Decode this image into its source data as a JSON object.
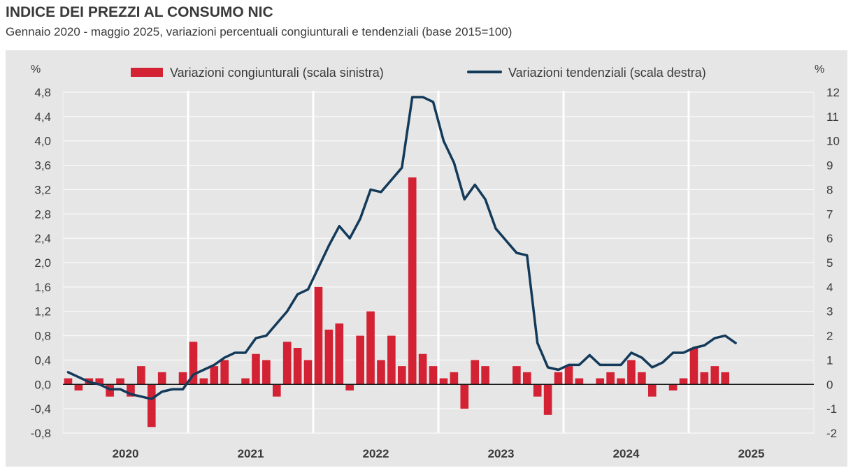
{
  "title": "INDICE DEI PREZZI AL CONSUMO NIC",
  "subtitle": "Gennaio 2020 - maggio 2025, variazioni percentuali congiunturali e tendenziali (base 2015=100)",
  "colors": {
    "bar": "#d42235",
    "line": "#143a5a",
    "plot_bg": "#e6e6e6",
    "grid": "#ffffff",
    "text": "#3a3a3a"
  },
  "chart_data": {
    "type": "bar+line",
    "title": "INDICE DEI PREZZI AL CONSUMO NIC",
    "ylabel_left": "%",
    "ylabel_right": "%",
    "ylim_left": [
      -0.8,
      4.8
    ],
    "ylim_right": [
      -2,
      12
    ],
    "yticks_left": [
      "4,8",
      "4,4",
      "4,0",
      "3,6",
      "3,2",
      "2,8",
      "2,4",
      "2,0",
      "1,6",
      "1,2",
      "0,8",
      "0,4",
      "0,0",
      "-0,4",
      "-0,8"
    ],
    "yticks_right": [
      "12",
      "11",
      "10",
      "9",
      "8",
      "7",
      "6",
      "5",
      "4",
      "3",
      "2",
      "1",
      "0",
      "-1",
      "-2"
    ],
    "years": [
      "2020",
      "2021",
      "2022",
      "2023",
      "2024",
      "2025"
    ],
    "legend_position": "top",
    "series": [
      {
        "name": "Variazioni congiunturali (scala sinistra)",
        "type": "bar",
        "axis": "left",
        "values": [
          0.1,
          -0.1,
          0.1,
          0.1,
          -0.2,
          0.1,
          -0.2,
          0.3,
          -0.7,
          0.2,
          0.0,
          0.2,
          0.7,
          0.1,
          0.3,
          0.4,
          0.0,
          0.1,
          0.5,
          0.4,
          -0.2,
          0.7,
          0.6,
          0.4,
          1.6,
          0.9,
          1.0,
          -0.1,
          0.8,
          1.2,
          0.4,
          0.8,
          0.3,
          3.4,
          0.5,
          0.3,
          0.1,
          0.2,
          -0.4,
          0.4,
          0.3,
          0.0,
          0.0,
          0.3,
          0.2,
          -0.2,
          -0.5,
          0.2,
          0.3,
          0.1,
          0.0,
          0.1,
          0.2,
          0.1,
          0.4,
          0.2,
          -0.2,
          0.0,
          -0.1,
          0.1,
          0.6,
          0.2,
          0.3,
          0.2,
          0.0
        ]
      },
      {
        "name": "Variazioni tendenziali (scala destra)",
        "type": "line",
        "axis": "right",
        "values": [
          0.5,
          0.3,
          0.1,
          0.0,
          -0.2,
          -0.2,
          -0.4,
          -0.5,
          -0.6,
          -0.3,
          -0.2,
          -0.2,
          0.4,
          0.6,
          0.8,
          1.1,
          1.3,
          1.3,
          1.9,
          2.0,
          2.5,
          3.0,
          3.7,
          3.9,
          4.8,
          5.7,
          6.5,
          6.0,
          6.8,
          8.0,
          7.9,
          8.4,
          8.9,
          11.8,
          11.8,
          11.6,
          10.0,
          9.1,
          7.6,
          8.2,
          7.6,
          6.4,
          5.9,
          5.4,
          5.3,
          1.7,
          0.7,
          0.6,
          0.8,
          0.8,
          1.2,
          0.8,
          0.8,
          0.8,
          1.3,
          1.1,
          0.7,
          0.9,
          1.3,
          1.3,
          1.5,
          1.6,
          1.9,
          2.0,
          1.7
        ]
      }
    ]
  }
}
